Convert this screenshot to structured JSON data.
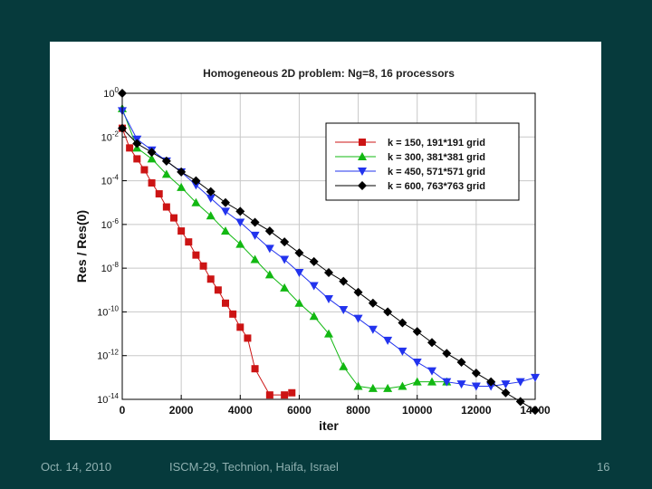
{
  "chart_data": {
    "type": "line",
    "title": "Homogeneous 2D problem:  Ng=8,  16 processors",
    "xlabel": "iter",
    "ylabel": "Res / Res(0)",
    "xlim": [
      0,
      14000
    ],
    "ylim_log10": [
      -14,
      0
    ],
    "x_ticks": [
      0,
      2000,
      4000,
      6000,
      8000,
      10000,
      12000,
      14000
    ],
    "x_tick_labels": [
      "0",
      "2000",
      "4000",
      "6000",
      "8000",
      "10000",
      "12000",
      "14000"
    ],
    "y_ticks_log10": [
      0,
      -2,
      -4,
      -6,
      -8,
      -10,
      -12,
      -14
    ],
    "y_tick_labels": [
      {
        "base": "10",
        "exp": "0"
      },
      {
        "base": "10",
        "exp": "-2"
      },
      {
        "base": "10",
        "exp": "-4"
      },
      {
        "base": "10",
        "exp": "-6"
      },
      {
        "base": "10",
        "exp": "-8"
      },
      {
        "base": "10",
        "exp": "-10"
      },
      {
        "base": "10",
        "exp": "-12"
      },
      {
        "base": "10",
        "exp": "-14"
      }
    ],
    "grid": true,
    "legend_position": "top-right",
    "series": [
      {
        "name": "k = 150,  191*191 grid",
        "color": "#cc1414",
        "marker": "square",
        "x": [
          0,
          250,
          500,
          750,
          1000,
          1250,
          1500,
          1750,
          2000,
          2250,
          2500,
          2750,
          3000,
          3250,
          3500,
          3750,
          4000,
          4250,
          4500,
          5000,
          5500,
          5750
        ],
        "log10_y": [
          -1.6,
          -2.5,
          -3.0,
          -3.5,
          -4.1,
          -4.6,
          -5.2,
          -5.7,
          -6.3,
          -6.8,
          -7.4,
          -7.9,
          -8.5,
          -9.0,
          -9.6,
          -10.1,
          -10.7,
          -11.2,
          -12.6,
          -13.8,
          -13.8,
          -13.7
        ]
      },
      {
        "name": "k = 300,  381*381 grid",
        "color": "#12b812",
        "marker": "triangle-up",
        "x": [
          0,
          500,
          1000,
          1500,
          2000,
          2500,
          3000,
          3500,
          4000,
          4500,
          5000,
          5500,
          6000,
          6500,
          7000,
          7500,
          8000,
          8500,
          9000,
          9500,
          10000,
          10500,
          11000
        ],
        "log10_y": [
          -0.7,
          -2.5,
          -3.0,
          -3.7,
          -4.3,
          -5.0,
          -5.6,
          -6.3,
          -6.9,
          -7.6,
          -8.3,
          -8.9,
          -9.6,
          -10.2,
          -11.0,
          -12.5,
          -13.4,
          -13.5,
          -13.5,
          -13.4,
          -13.2,
          -13.2,
          -13.2
        ]
      },
      {
        "name": "k = 450,  571*571 grid",
        "color": "#2233ee",
        "marker": "triangle-down",
        "x": [
          0,
          500,
          1000,
          1500,
          2000,
          2500,
          3000,
          3500,
          4000,
          4500,
          5000,
          5500,
          6000,
          6500,
          7000,
          7500,
          8000,
          8500,
          9000,
          9500,
          10000,
          10500,
          11000,
          11500,
          12000,
          12500,
          13000,
          13500,
          14000
        ],
        "log10_y": [
          -0.8,
          -2.1,
          -2.6,
          -3.1,
          -3.6,
          -4.2,
          -4.8,
          -5.4,
          -5.9,
          -6.5,
          -7.1,
          -7.6,
          -8.2,
          -8.8,
          -9.4,
          -9.9,
          -10.3,
          -10.8,
          -11.3,
          -11.8,
          -12.3,
          -12.7,
          -13.2,
          -13.3,
          -13.4,
          -13.4,
          -13.3,
          -13.2,
          -13.0
        ]
      },
      {
        "name": "k = 600,  763*763 grid",
        "color": "#000000",
        "marker": "diamond",
        "x": [
          0,
          0,
          500,
          1000,
          1500,
          2000,
          2500,
          3000,
          3500,
          4000,
          4500,
          5000,
          5500,
          6000,
          6500,
          7000,
          7500,
          8000,
          8500,
          9000,
          9500,
          10000,
          10500,
          11000,
          11500,
          12000,
          12500,
          13000,
          13500,
          14000
        ],
        "log10_y": [
          0.0,
          -1.6,
          -2.3,
          -2.7,
          -3.1,
          -3.6,
          -4.0,
          -4.5,
          -5.0,
          -5.4,
          -5.9,
          -6.3,
          -6.8,
          -7.3,
          -7.7,
          -8.2,
          -8.6,
          -9.1,
          -9.6,
          -10.0,
          -10.5,
          -10.9,
          -11.4,
          -11.9,
          -12.3,
          -12.8,
          -13.2,
          -13.7,
          -14.1,
          -14.5
        ]
      }
    ]
  },
  "footer": {
    "date": "Oct. 14, 2010",
    "conference": "ISCM-29, Technion, Haifa, Israel",
    "page": "16"
  }
}
